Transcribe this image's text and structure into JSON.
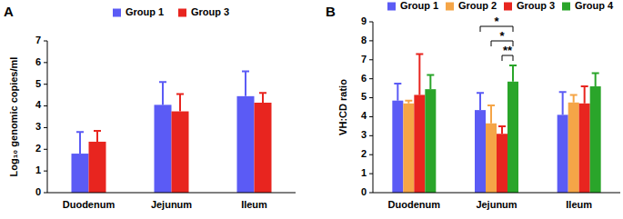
{
  "chart_data": [
    {
      "type": "bar",
      "title": "A",
      "y_label": "Log₁₀ genomic copies/ml",
      "categories": [
        "Duodenum",
        "Jejunum",
        "Ileum"
      ],
      "series": [
        {
          "name": "Group 1",
          "color": "#5b5bf5",
          "values": [
            1.8,
            4.05,
            4.45
          ],
          "errors": [
            1.0,
            1.05,
            1.15
          ]
        },
        {
          "name": "Group 3",
          "color": "#e8251f",
          "values": [
            2.35,
            3.75,
            4.15
          ],
          "errors": [
            0.5,
            0.8,
            0.45
          ]
        }
      ],
      "ylim": [
        0,
        7
      ],
      "yticks": [
        0,
        1,
        2,
        3,
        4,
        5,
        6,
        7
      ],
      "grid": false,
      "legend": "top"
    },
    {
      "type": "bar",
      "title": "B",
      "y_label": "VH:CD ratio",
      "categories": [
        "Duodenum",
        "Jejunum",
        "Ileum"
      ],
      "series": [
        {
          "name": "Group 1",
          "color": "#5b5bf5",
          "values": [
            4.85,
            4.35,
            4.1
          ],
          "errors": [
            0.9,
            0.9,
            1.2
          ]
        },
        {
          "name": "Group 2",
          "color": "#f5a547",
          "values": [
            4.7,
            3.65,
            4.75
          ],
          "errors": [
            0.15,
            0.95,
            0.4
          ]
        },
        {
          "name": "Group 3",
          "color": "#e8251f",
          "values": [
            5.15,
            3.1,
            4.7
          ],
          "errors": [
            2.15,
            0.4,
            0.9
          ]
        },
        {
          "name": "Group 4",
          "color": "#2aa52a",
          "values": [
            5.45,
            5.85,
            5.6
          ],
          "errors": [
            0.75,
            0.85,
            0.7
          ]
        }
      ],
      "annotations": [
        {
          "category": "Jejunum",
          "from": "Group 1",
          "to": "Group 4",
          "label": "*"
        },
        {
          "category": "Jejunum",
          "from": "Group 2",
          "to": "Group 4",
          "label": "*"
        },
        {
          "category": "Jejunum",
          "from": "Group 3",
          "to": "Group 4",
          "label": "**"
        }
      ],
      "ylim": [
        0,
        9
      ],
      "yticks": [
        0,
        1,
        2,
        3,
        4,
        5,
        6,
        7,
        8,
        9
      ],
      "grid": false,
      "legend": "top"
    }
  ]
}
